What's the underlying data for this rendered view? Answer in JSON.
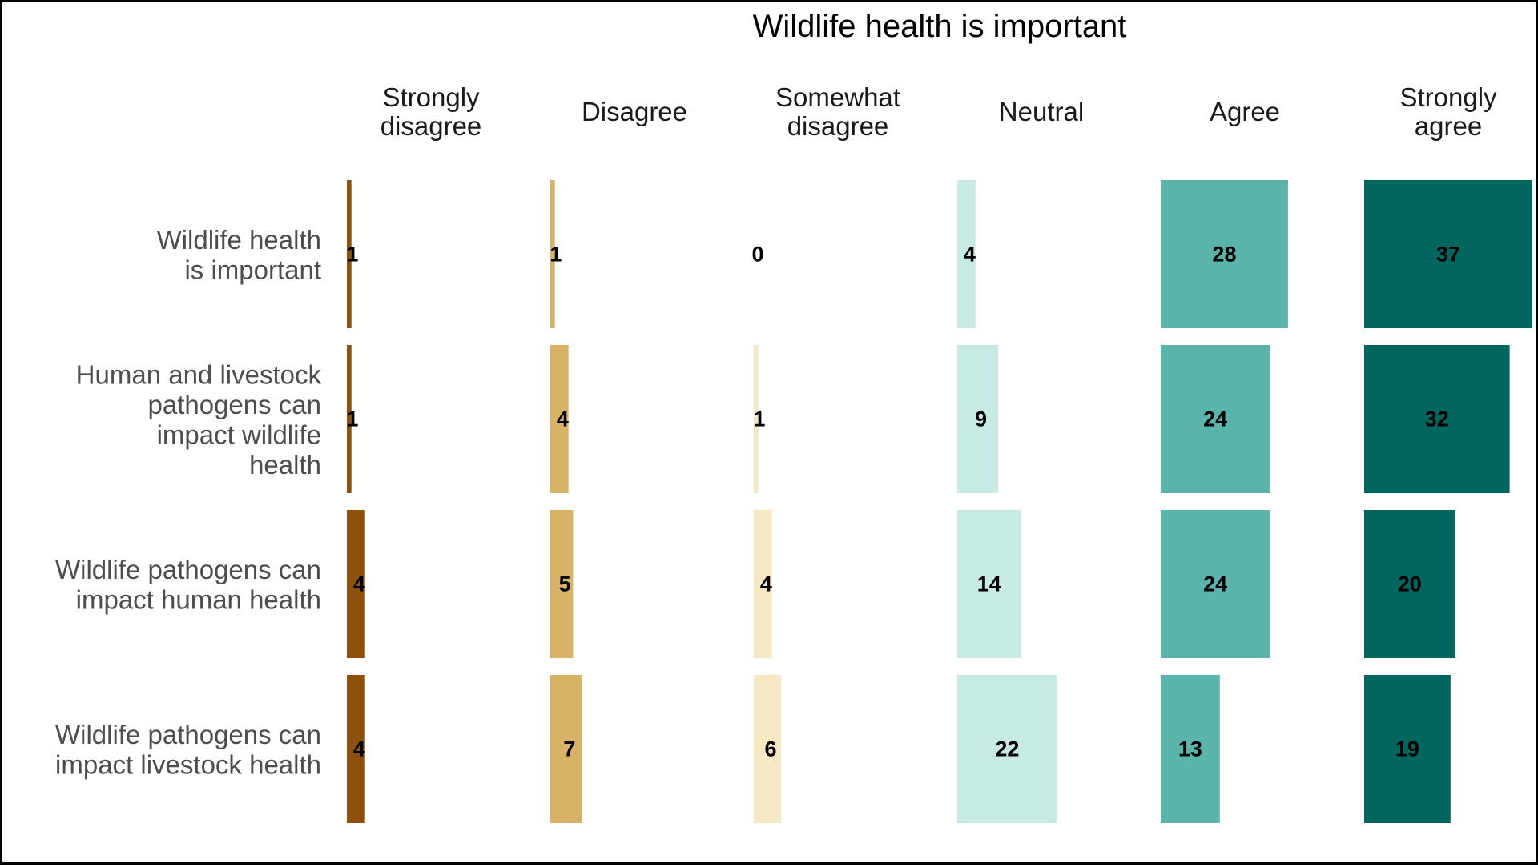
{
  "chart_data": {
    "type": "bar",
    "title": "Wildlife health is important",
    "columns": [
      {
        "key": "strongly_disagree",
        "label_lines": [
          "Strongly",
          "disagree"
        ],
        "color": "#8C510A"
      },
      {
        "key": "disagree",
        "label_lines": [
          "Disagree"
        ],
        "color": "#D8B365"
      },
      {
        "key": "somewhat_disagree",
        "label_lines": [
          "Somewhat",
          "disagree"
        ],
        "color": "#F6E8C3"
      },
      {
        "key": "neutral",
        "label_lines": [
          "Neutral"
        ],
        "color": "#C7EAE5"
      },
      {
        "key": "agree",
        "label_lines": [
          "Agree"
        ],
        "color": "#5AB4AC"
      },
      {
        "key": "strongly_agree",
        "label_lines": [
          "Strongly",
          "agree"
        ],
        "color": "#01665E"
      }
    ],
    "rows": [
      {
        "label_lines": [
          "Wildlife health",
          "is important"
        ],
        "values": [
          1,
          1,
          0,
          4,
          28,
          37
        ]
      },
      {
        "label_lines": [
          "Human and livestock",
          "pathogens can",
          "impact wildlife",
          "health"
        ],
        "values": [
          1,
          4,
          1,
          9,
          24,
          32
        ]
      },
      {
        "label_lines": [
          "Wildlife pathogens can",
          "impact human health"
        ],
        "values": [
          4,
          5,
          4,
          14,
          24,
          20
        ]
      },
      {
        "label_lines": [
          "Wildlife pathogens can",
          "impact livestock health"
        ],
        "values": [
          4,
          7,
          6,
          22,
          13,
          19
        ]
      }
    ],
    "max_value": 37
  }
}
